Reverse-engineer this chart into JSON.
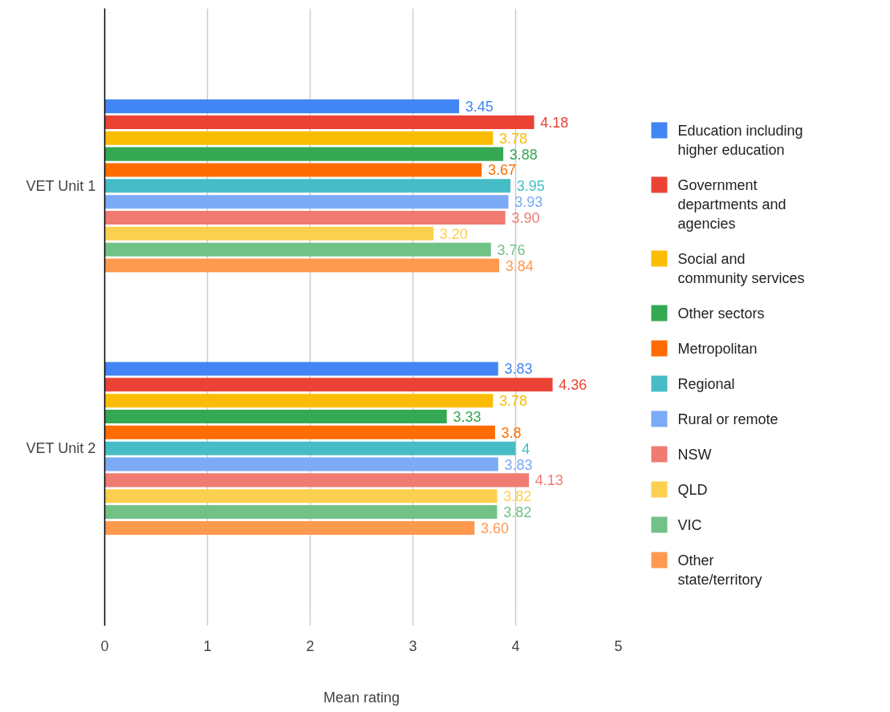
{
  "chart_data": {
    "type": "bar",
    "orientation": "horizontal",
    "xlabel": "Mean rating",
    "categories": [
      "VET Unit 1",
      "VET Unit 2"
    ],
    "xlim": [
      0,
      5
    ],
    "xticks": [
      0,
      1,
      2,
      3,
      4,
      5
    ],
    "grid": "x",
    "legend": "right",
    "series": [
      {
        "name": "Education including higher education",
        "color": "#4285f4",
        "values": [
          3.45,
          3.83
        ],
        "value_labels": [
          "3.45",
          "3.83"
        ]
      },
      {
        "name": "Government departments and agencies",
        "color": "#ea4335",
        "values": [
          4.18,
          4.36
        ],
        "value_labels": [
          "4.18",
          "4.36"
        ]
      },
      {
        "name": "Social and community services",
        "color": "#fbbc04",
        "values": [
          3.78,
          3.78
        ],
        "value_labels": [
          "3.78",
          "3.78"
        ]
      },
      {
        "name": "Other sectors",
        "color": "#34a853",
        "values": [
          3.88,
          3.33
        ],
        "value_labels": [
          "3.88",
          "3.33"
        ]
      },
      {
        "name": "Metropolitan",
        "color": "#ff6d01",
        "values": [
          3.67,
          3.8
        ],
        "value_labels": [
          "3.67",
          "3.8"
        ]
      },
      {
        "name": "Regional",
        "color": "#46bdc6",
        "values": [
          3.95,
          4
        ],
        "value_labels": [
          "3.95",
          "4"
        ]
      },
      {
        "name": "Rural or remote",
        "color": "#7baaf7",
        "values": [
          3.93,
          3.83
        ],
        "value_labels": [
          "3.93",
          "3.83"
        ]
      },
      {
        "name": "NSW",
        "color": "#f07b72",
        "values": [
          3.9,
          4.13
        ],
        "value_labels": [
          "3.90",
          "4.13"
        ]
      },
      {
        "name": "QLD",
        "color": "#fcd04f",
        "values": [
          3.2,
          3.82
        ],
        "value_labels": [
          "3.20",
          "3.82"
        ]
      },
      {
        "name": "VIC",
        "color": "#71c287",
        "values": [
          3.76,
          3.82
        ],
        "value_labels": [
          "3.76",
          "3.82"
        ]
      },
      {
        "name": "Other state/territory",
        "color": "#ff994d",
        "values": [
          3.84,
          3.6
        ],
        "value_labels": [
          "3.84",
          "3.60"
        ]
      }
    ]
  }
}
